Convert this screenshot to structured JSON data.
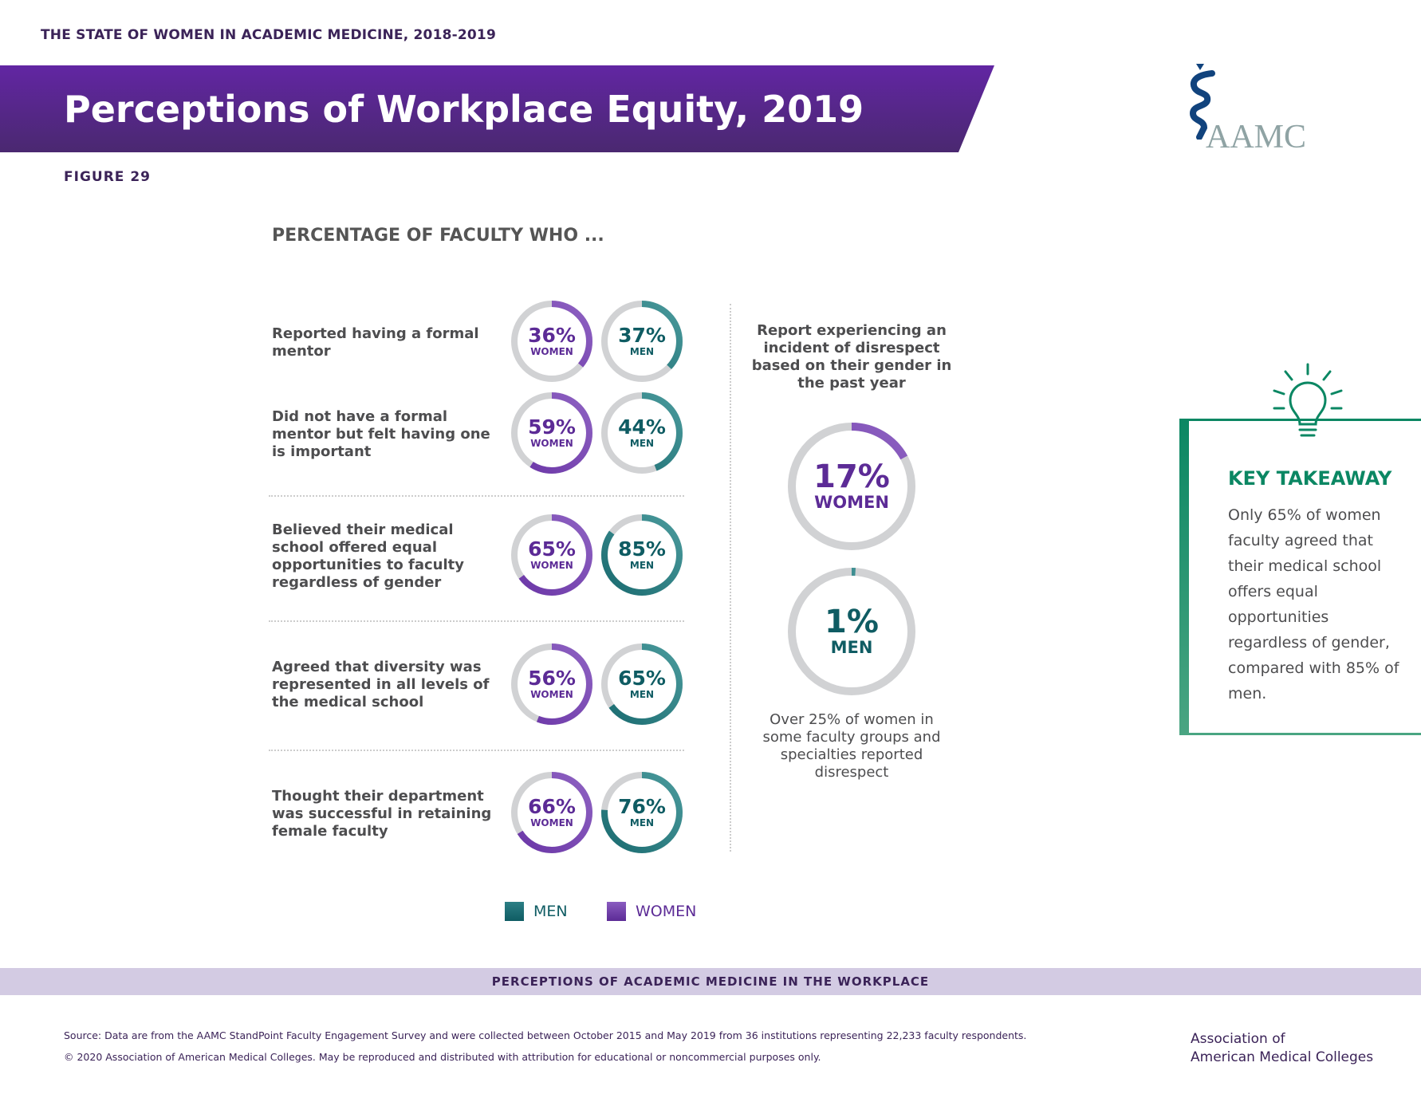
{
  "header": {
    "series_title": "THE STATE OF WOMEN IN ACADEMIC MEDICINE, 2018-2019",
    "title": "Perceptions of Workplace Equity, 2019",
    "figure": "FIGURE 29",
    "logo_text": "AAMC"
  },
  "section_heading": "PERCENTAGE OF FACULTY WHO ...",
  "rows": [
    {
      "label": "Reported having a formal mentor",
      "women": 36,
      "men": 37
    },
    {
      "label": "Did not have a formal mentor but felt having one is important",
      "women": 59,
      "men": 44
    },
    {
      "label": "Believed their medical school offered equal opportunities to faculty regardless of gender",
      "women": 65,
      "men": 85
    },
    {
      "label": "Agreed that diversity was represented in all levels of the medical school",
      "women": 56,
      "men": 65
    },
    {
      "label": "Thought their department was successful in retaining female faculty",
      "women": 66,
      "men": 76
    }
  ],
  "labels": {
    "women": "WOMEN",
    "men": "MEN"
  },
  "disrespect": {
    "heading": "Report experiencing an incident of disrespect based on their gender in the past year",
    "women": 17,
    "men": 1,
    "note": "Over 25% of women in some faculty groups and specialties reported disrespect"
  },
  "takeaway": {
    "title": "KEY TAKEAWAY",
    "body": "Only 65% of women faculty agreed that their medical school offers equal opportunities regardless of gender, compared with 85% of men."
  },
  "legend": {
    "men": "MEN",
    "women": "WOMEN"
  },
  "band": "PERCEPTIONS OF ACADEMIC MEDICINE IN THE WORKPLACE",
  "footer": {
    "source": "Source: Data are from the AAMC StandPoint Faculty Engagement Survey and were collected between October 2015 and May 2019 from 36 institutions representing 22,233 faculty respondents.",
    "copyright": "© 2020 Association of American Medical Colleges. May be reproduced and distributed with attribution for educational or noncommercial purposes only.",
    "org_line1": "Association of",
    "org_line2": "American Medical Colleges"
  },
  "colors": {
    "women": "#6a35a6",
    "men": "#1a6b70",
    "track": "#d1d2d4",
    "takeaway": "#0b8763"
  }
}
